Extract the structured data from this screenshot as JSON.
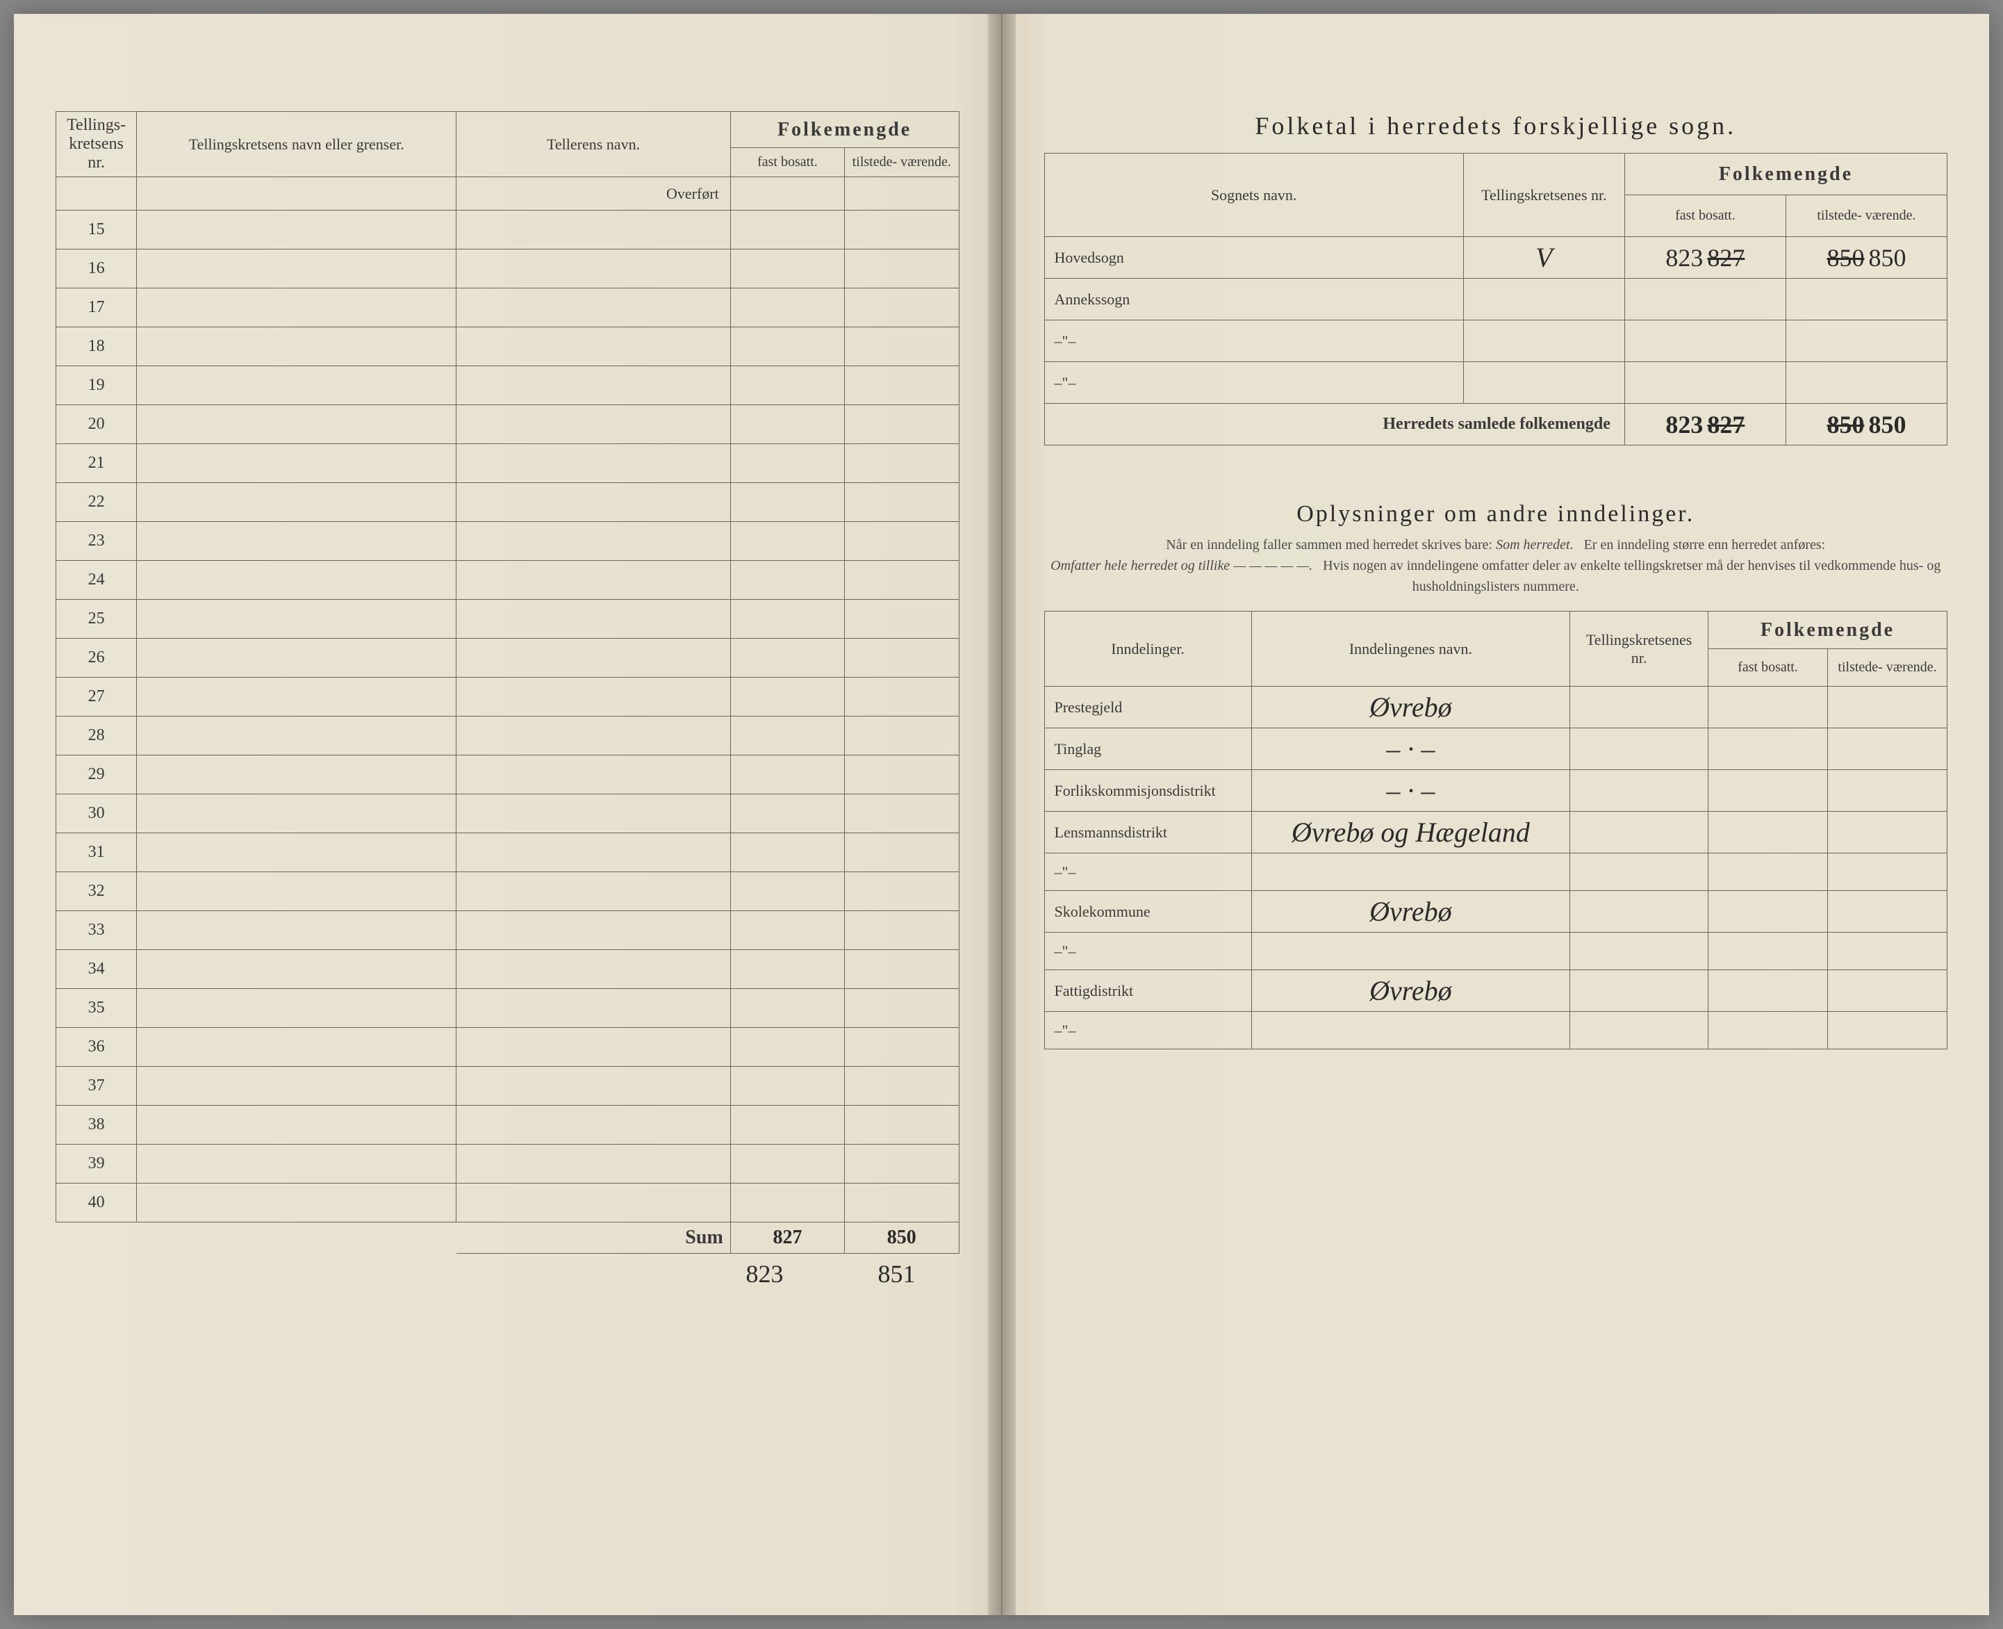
{
  "leftPage": {
    "headers": {
      "col1": "Tellings-\nkretsens\nnr.",
      "col2": "Tellingskretsens navn eller grenser.",
      "col3": "Tellerens navn.",
      "groupFolk": "Folkemengde",
      "fast": "fast\nbosatt.",
      "tilstede": "tilstede-\nværende."
    },
    "overfort": "Overført",
    "rowStart": 15,
    "rowEnd": 40,
    "sumLabel": "Sum",
    "sumFast": "827",
    "sumTilstede": "850",
    "belowFast": "823",
    "belowTilstede": "851"
  },
  "rightPage": {
    "title": "Folketal i herredets forskjellige sogn.",
    "sognHeaders": {
      "sogn": "Sognets navn.",
      "tknr": "Tellingskretsenes\nnr.",
      "groupFolk": "Folkemengde",
      "fast": "fast\nbosatt.",
      "tilstede": "tilstede-\nværende."
    },
    "sognRows": [
      {
        "label": "Hovedsogn",
        "tknr": "V",
        "fast": "823",
        "fastStrike": "827",
        "tilstede": "850",
        "tilstedeStrike": "850"
      },
      {
        "label": "Annekssogn",
        "tknr": "",
        "fast": "",
        "tilstede": ""
      },
      {
        "label": "–\"–",
        "tknr": "",
        "fast": "",
        "tilstede": ""
      },
      {
        "label": "–\"–",
        "tknr": "",
        "fast": "",
        "tilstede": ""
      }
    ],
    "totalLabel": "Herredets samlede folkemengde",
    "totalFast": "823",
    "totalFastStrike": "827",
    "totalTilstede": "850",
    "totalTilstedeStrike": "850",
    "oplysTitle": "Oplysninger om andre inndelinger.",
    "oplysNote1": "Når en inndeling faller sammen med herredet skrives bare:",
    "oplysNoteItalic1": "Som herredet.",
    "oplysNote2": "Er en inndeling større enn herredet anføres:",
    "oplysNoteItalic2": "Omfatter hele herredet og tillike — — — — —.",
    "oplysNote3": "Hvis nogen av inndelingene omfatter deler av enkelte tellingskretser må der henvises til vedkommende hus- og husholdningslisters nummere.",
    "inndelHeaders": {
      "col1": "Inndelinger.",
      "col2": "Inndelingenes navn.",
      "tknr": "Tellingskretsenes\nnr.",
      "groupFolk": "Folkemengde",
      "fast": "fast\nbosatt.",
      "tilstede": "tilstede-\nværende."
    },
    "inndelRows": [
      {
        "label": "Prestegjeld",
        "navn": "Øvrebø"
      },
      {
        "label": "Tinglag",
        "navn": "– · –"
      },
      {
        "label": "Forlikskommisjonsdistrikt",
        "navn": "– · –"
      },
      {
        "label": "Lensmannsdistrikt",
        "navn": "Øvrebø og Hægeland"
      },
      {
        "label": "–\"–",
        "navn": ""
      },
      {
        "label": "Skolekommune",
        "navn": "Øvrebø"
      },
      {
        "label": "–\"–",
        "navn": ""
      },
      {
        "label": "Fattigdistrikt",
        "navn": "Øvrebø"
      },
      {
        "label": "–\"–",
        "navn": ""
      }
    ]
  },
  "colors": {
    "paper": "#eae4d4",
    "ink": "#2a2a2a",
    "rule": "#6b6555"
  }
}
